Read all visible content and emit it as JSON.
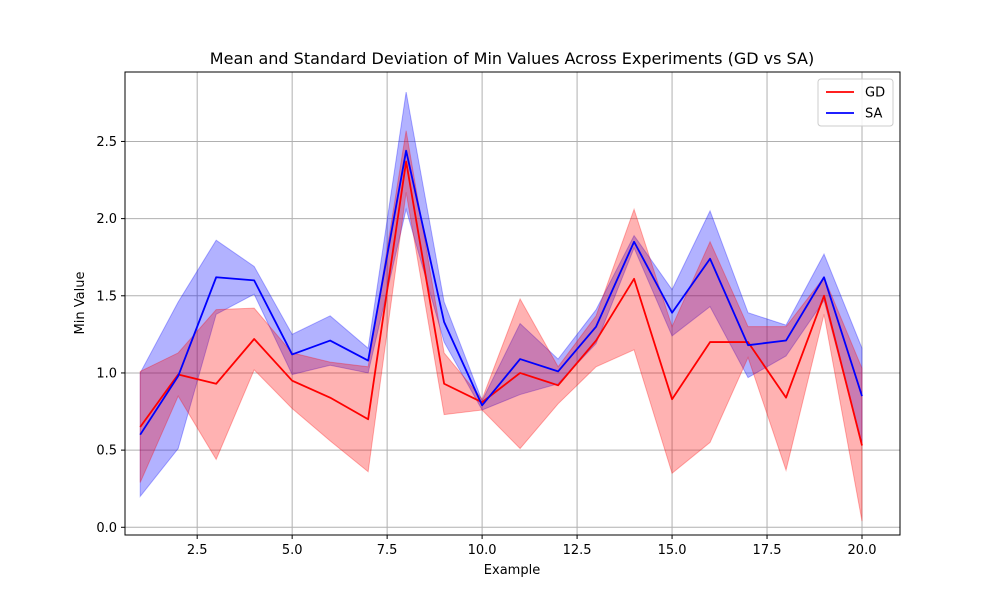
{
  "chart_data": {
    "type": "line",
    "title": "Mean and Standard Deviation of Min Values Across Experiments (GD vs SA)",
    "xlabel": "Example",
    "ylabel": "Min Value",
    "xlim": [
      0.6,
      21.0
    ],
    "ylim": [
      -0.05,
      2.95
    ],
    "xticks": [
      2.5,
      5.0,
      7.5,
      10.0,
      12.5,
      15.0,
      17.5,
      20.0
    ],
    "xtick_labels": [
      "2.5",
      "5.0",
      "7.5",
      "10.0",
      "12.5",
      "15.0",
      "17.5",
      "20.0"
    ],
    "yticks": [
      0.0,
      0.5,
      1.0,
      1.5,
      2.0,
      2.5
    ],
    "ytick_labels": [
      "0.0",
      "0.5",
      "1.0",
      "1.5",
      "2.0",
      "2.5"
    ],
    "grid": true,
    "legend_position": "top-right",
    "x": [
      1,
      2,
      3,
      4,
      5,
      6,
      7,
      8,
      9,
      10,
      11,
      12,
      13,
      14,
      15,
      16,
      17,
      18,
      19,
      20
    ],
    "series": [
      {
        "name": "GD",
        "color": "#ff0000",
        "band_color": "#ff0000",
        "mean": [
          0.65,
          0.99,
          0.93,
          1.22,
          0.95,
          0.84,
          0.7,
          2.37,
          0.93,
          0.81,
          1.0,
          0.92,
          1.21,
          1.61,
          0.83,
          1.2,
          1.2,
          0.84,
          1.5,
          0.53
        ],
        "upper": [
          1.01,
          1.13,
          1.41,
          1.42,
          1.13,
          1.07,
          1.04,
          2.57,
          1.13,
          0.83,
          1.48,
          1.04,
          1.37,
          2.06,
          1.3,
          1.85,
          1.3,
          1.3,
          1.62,
          1.03
        ],
        "lower": [
          0.29,
          0.85,
          0.44,
          1.02,
          0.77,
          0.56,
          0.36,
          2.17,
          0.73,
          0.76,
          0.51,
          0.8,
          1.04,
          1.15,
          0.35,
          0.55,
          1.1,
          0.37,
          1.38,
          0.04
        ]
      },
      {
        "name": "SA",
        "color": "#0000ff",
        "band_color": "#0000ff",
        "mean": [
          0.6,
          0.98,
          1.62,
          1.6,
          1.12,
          1.21,
          1.08,
          2.44,
          1.33,
          0.79,
          1.09,
          1.01,
          1.3,
          1.85,
          1.39,
          1.74,
          1.18,
          1.21,
          1.62,
          0.85
        ],
        "upper": [
          1.0,
          1.46,
          1.86,
          1.69,
          1.25,
          1.37,
          1.16,
          2.82,
          1.46,
          0.82,
          1.32,
          1.09,
          1.41,
          1.89,
          1.54,
          2.05,
          1.39,
          1.31,
          1.77,
          1.16
        ],
        "lower": [
          0.2,
          0.51,
          1.38,
          1.51,
          0.99,
          1.05,
          1.0,
          2.06,
          1.2,
          0.76,
          0.86,
          0.93,
          1.19,
          1.81,
          1.24,
          1.43,
          0.97,
          1.11,
          1.47,
          0.54
        ]
      }
    ]
  }
}
